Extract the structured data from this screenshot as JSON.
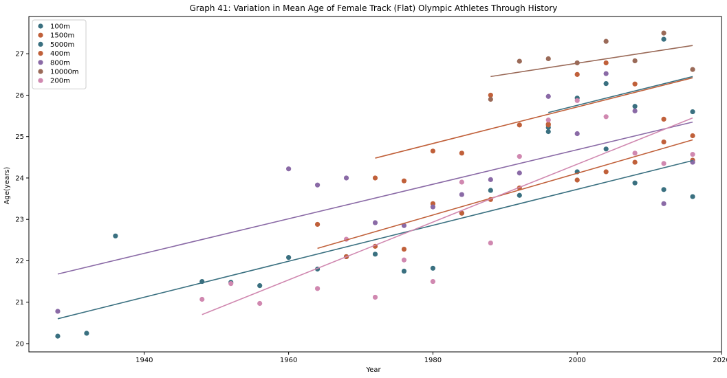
{
  "chart_data": {
    "type": "scatter",
    "title": "Graph 41: Variation in Mean Age of Female Track (Flat) Olympic Athletes Through History",
    "xlabel": "Year",
    "ylabel": "Age(years)",
    "xlim": [
      1924,
      2020
    ],
    "ylim": [
      19.8,
      27.9
    ],
    "xticks": [
      1940,
      1960,
      1980,
      2000,
      2020
    ],
    "yticks": [
      20,
      21,
      22,
      23,
      24,
      25,
      26,
      27
    ],
    "legend_position": "top-left",
    "grid": false,
    "series": [
      {
        "name": "100m",
        "color": "#3a7080",
        "points": [
          [
            1928,
            20.18
          ],
          [
            1932,
            20.25
          ],
          [
            1936,
            22.6
          ],
          [
            1948,
            21.5
          ],
          [
            1952,
            21.48
          ],
          [
            1956,
            21.4
          ],
          [
            1960,
            22.08
          ],
          [
            1964,
            21.8
          ],
          [
            1968,
            22.1
          ],
          [
            1972,
            22.16
          ],
          [
            1976,
            21.75
          ],
          [
            1980,
            21.82
          ],
          [
            1984,
            23.15
          ],
          [
            1988,
            23.7
          ],
          [
            1992,
            23.58
          ],
          [
            1996,
            25.12
          ],
          [
            2000,
            24.15
          ],
          [
            2004,
            24.7
          ],
          [
            2008,
            23.88
          ],
          [
            2012,
            23.72
          ],
          [
            2016,
            23.55
          ]
        ],
        "trend": [
          [
            1928,
            20.6
          ],
          [
            2016,
            24.42
          ]
        ]
      },
      {
        "name": "1500m",
        "color": "#c0603a",
        "points": [
          [
            1972,
            24.0
          ],
          [
            1976,
            23.93
          ],
          [
            1980,
            24.65
          ],
          [
            1984,
            24.6
          ],
          [
            1988,
            26.0
          ],
          [
            1992,
            25.28
          ],
          [
            1996,
            25.3
          ],
          [
            2000,
            26.5
          ],
          [
            2004,
            26.78
          ],
          [
            2008,
            26.27
          ],
          [
            2012,
            25.42
          ],
          [
            2016,
            25.02
          ]
        ],
        "trend": [
          [
            1972,
            24.48
          ],
          [
            2016,
            26.42
          ]
        ]
      },
      {
        "name": "5000m",
        "color": "#3a7080",
        "points": [
          [
            1996,
            25.22
          ],
          [
            2000,
            25.93
          ],
          [
            2004,
            26.28
          ],
          [
            2008,
            25.73
          ],
          [
            2012,
            27.35
          ],
          [
            2016,
            25.6
          ]
        ],
        "trend": [
          [
            1996,
            25.58
          ],
          [
            2016,
            26.45
          ]
        ]
      },
      {
        "name": "400m",
        "color": "#c0603a",
        "points": [
          [
            1964,
            22.88
          ],
          [
            1968,
            22.1
          ],
          [
            1972,
            22.35
          ],
          [
            1976,
            22.28
          ],
          [
            1980,
            23.38
          ],
          [
            1984,
            23.15
          ],
          [
            1988,
            23.48
          ],
          [
            1992,
            23.76
          ],
          [
            1996,
            25.28
          ],
          [
            2000,
            23.95
          ],
          [
            2004,
            24.15
          ],
          [
            2008,
            24.38
          ],
          [
            2012,
            24.87
          ],
          [
            2016,
            24.43
          ]
        ],
        "trend": [
          [
            1964,
            22.3
          ],
          [
            2016,
            24.92
          ]
        ]
      },
      {
        "name": "800m",
        "color": "#8a6aa6",
        "points": [
          [
            1928,
            20.78
          ],
          [
            1960,
            24.22
          ],
          [
            1964,
            23.83
          ],
          [
            1968,
            24.0
          ],
          [
            1972,
            22.92
          ],
          [
            1976,
            22.85
          ],
          [
            1980,
            23.3
          ],
          [
            1984,
            23.6
          ],
          [
            1988,
            23.96
          ],
          [
            1992,
            24.12
          ],
          [
            1996,
            25.97
          ],
          [
            2000,
            25.07
          ],
          [
            2004,
            26.52
          ],
          [
            2008,
            25.62
          ],
          [
            2012,
            23.38
          ],
          [
            2016,
            24.38
          ]
        ],
        "trend": [
          [
            1928,
            21.68
          ],
          [
            2016,
            25.35
          ]
        ]
      },
      {
        "name": "10000m",
        "color": "#9a6a58",
        "points": [
          [
            1988,
            25.9
          ],
          [
            1992,
            26.82
          ],
          [
            1996,
            26.88
          ],
          [
            2000,
            26.78
          ],
          [
            2004,
            27.3
          ],
          [
            2008,
            26.83
          ],
          [
            2012,
            27.5
          ],
          [
            2016,
            26.62
          ]
        ],
        "trend": [
          [
            1988,
            26.45
          ],
          [
            2016,
            27.2
          ]
        ]
      },
      {
        "name": "200m",
        "color": "#d088b0",
        "points": [
          [
            1948,
            21.07
          ],
          [
            1952,
            21.45
          ],
          [
            1956,
            20.97
          ],
          [
            1964,
            21.33
          ],
          [
            1968,
            22.52
          ],
          [
            1972,
            21.12
          ],
          [
            1976,
            22.02
          ],
          [
            1980,
            21.5
          ],
          [
            1984,
            23.9
          ],
          [
            1988,
            22.43
          ],
          [
            1992,
            24.52
          ],
          [
            1996,
            25.4
          ],
          [
            2000,
            25.87
          ],
          [
            2004,
            25.48
          ],
          [
            2008,
            24.6
          ],
          [
            2012,
            24.35
          ],
          [
            2016,
            24.57
          ]
        ],
        "trend": [
          [
            1948,
            20.7
          ],
          [
            2016,
            25.45
          ]
        ]
      }
    ]
  }
}
